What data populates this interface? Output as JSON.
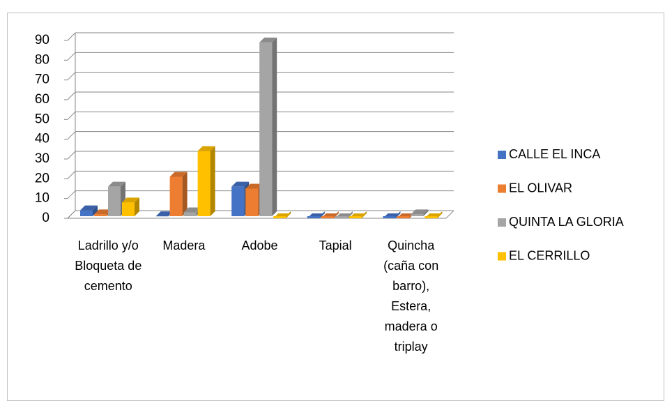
{
  "chart_data": {
    "type": "bar3d",
    "categories": [
      "Ladrillo y/o Bloqueta de cemento",
      "Madera",
      "Adobe",
      "Tapial",
      "Quincha (caña con barro), Estera, madera o triplay"
    ],
    "series": [
      {
        "name": "CALLE EL INCA",
        "color": "#4472c4",
        "values": [
          4,
          1,
          16,
          0,
          0
        ]
      },
      {
        "name": "EL OLIVAR",
        "color": "#ed7d31",
        "values": [
          2,
          21,
          15,
          0,
          0
        ]
      },
      {
        "name": "QUINTA LA GLORIA",
        "color": "#a5a5a5",
        "values": [
          16,
          3,
          89,
          0,
          2
        ]
      },
      {
        "name": "EL CERRILLO",
        "color": "#ffc000",
        "values": [
          8,
          34,
          0,
          0,
          0
        ]
      }
    ],
    "ylim": [
      0,
      90
    ],
    "yticks": [
      0,
      10,
      20,
      30,
      40,
      50,
      60,
      70,
      80,
      90
    ],
    "grid": true,
    "legend": "right"
  }
}
